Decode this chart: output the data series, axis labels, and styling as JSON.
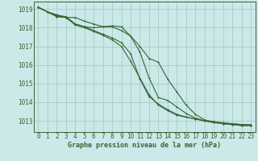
{
  "title": "Graphe pression niveau de la mer (hPa)",
  "background_color": "#cce8e8",
  "grid_color": "#99ccbb",
  "line_color": "#336633",
  "ylim": [
    1012.4,
    1019.4
  ],
  "yticks": [
    1013,
    1014,
    1015,
    1016,
    1017,
    1018,
    1019
  ],
  "series": [
    [
      1019.1,
      1018.85,
      1018.6,
      1018.55,
      1018.2,
      1018.05,
      1018.0,
      1018.05,
      1018.1,
      1018.05,
      1017.55,
      1016.7,
      1015.3,
      1014.25,
      1014.1,
      1013.75,
      1013.4,
      1013.15,
      1013.0,
      1012.9,
      1012.85,
      1012.85,
      1012.8,
      1012.8
    ],
    [
      1019.1,
      1018.85,
      1018.6,
      1018.55,
      1018.15,
      1018.0,
      1017.8,
      1017.6,
      1017.35,
      1017.0,
      1016.2,
      1015.3,
      1014.4,
      1013.85,
      1013.55,
      1013.3,
      1013.2,
      1013.1,
      1013.0,
      1012.95,
      1012.85,
      1012.8,
      1012.75,
      1012.75
    ],
    [
      1019.1,
      1018.85,
      1018.65,
      1018.6,
      1018.2,
      1018.05,
      1017.85,
      1017.65,
      1017.45,
      1017.2,
      1016.6,
      1015.25,
      1014.3,
      1013.9,
      1013.6,
      1013.35,
      1013.2,
      1013.1,
      1013.0,
      1012.95,
      1012.85,
      1012.8,
      1012.75,
      1012.75
    ],
    [
      1019.1,
      1018.85,
      1018.7,
      1018.55,
      1018.55,
      1018.35,
      1018.2,
      1018.05,
      1018.05,
      1017.85,
      1017.55,
      1017.0,
      1016.35,
      1016.15,
      1015.25,
      1014.55,
      1013.85,
      1013.35,
      1013.05,
      1012.95,
      1012.9,
      1012.85,
      1012.8,
      1012.75
    ]
  ],
  "xlabel_fontsize": 6,
  "ylabel_fontsize": 5.5,
  "tick_fontsize": 5.5,
  "linewidth": 0.8,
  "markersize": 2.0
}
